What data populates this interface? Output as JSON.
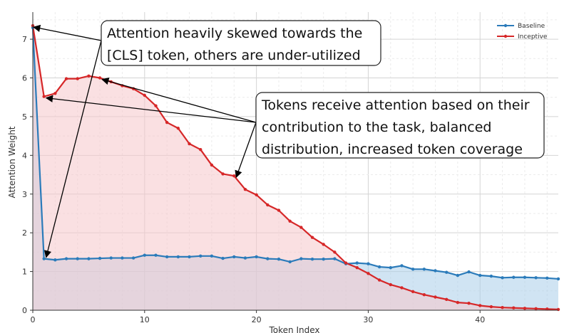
{
  "chart_data": {
    "type": "area",
    "title": "",
    "xlabel": "Token Index",
    "ylabel": "Attention Weight",
    "xlim": [
      0,
      47
    ],
    "ylim": [
      0,
      7.7
    ],
    "xticks": [
      0,
      10,
      20,
      30,
      40
    ],
    "yticks": [
      0,
      1,
      2,
      3,
      4,
      5,
      6,
      7
    ],
    "grid": true,
    "legend_position": "top-right",
    "x": [
      0,
      1,
      2,
      3,
      4,
      5,
      6,
      7,
      8,
      9,
      10,
      11,
      12,
      13,
      14,
      15,
      16,
      17,
      18,
      19,
      20,
      21,
      22,
      23,
      24,
      25,
      26,
      27,
      28,
      29,
      30,
      31,
      32,
      33,
      34,
      35,
      36,
      37,
      38,
      39,
      40,
      41,
      42,
      43,
      44,
      45,
      46,
      47
    ],
    "series": [
      {
        "name": "Baseline",
        "color": "#2b7bba",
        "fill": "#a9cdea",
        "values": [
          7.3,
          1.33,
          1.3,
          1.33,
          1.33,
          1.33,
          1.34,
          1.35,
          1.35,
          1.35,
          1.42,
          1.42,
          1.38,
          1.38,
          1.38,
          1.4,
          1.4,
          1.34,
          1.38,
          1.35,
          1.38,
          1.33,
          1.32,
          1.25,
          1.33,
          1.32,
          1.32,
          1.33,
          1.2,
          1.22,
          1.2,
          1.12,
          1.1,
          1.15,
          1.06,
          1.06,
          1.02,
          0.98,
          0.9,
          0.99,
          0.9,
          0.88,
          0.84,
          0.85,
          0.85,
          0.84,
          0.83,
          0.81
        ]
      },
      {
        "name": "Inceptive",
        "color": "#d62728",
        "fill": "#f6c7cb",
        "values": [
          7.35,
          5.52,
          5.6,
          5.98,
          5.98,
          6.05,
          6.0,
          5.9,
          5.8,
          5.72,
          5.55,
          5.28,
          4.85,
          4.7,
          4.3,
          4.15,
          3.75,
          3.52,
          3.47,
          3.12,
          2.98,
          2.72,
          2.58,
          2.3,
          2.14,
          1.88,
          1.7,
          1.5,
          1.22,
          1.1,
          0.95,
          0.78,
          0.66,
          0.58,
          0.48,
          0.4,
          0.34,
          0.28,
          0.2,
          0.18,
          0.12,
          0.09,
          0.07,
          0.06,
          0.05,
          0.04,
          0.03,
          0.02
        ]
      }
    ],
    "annotations": [
      {
        "text_lines": [
          "Attention heavily skewed towards the",
          "[CLS] token, others are under-utilized"
        ],
        "arrow_targets": [
          [
            0,
            7.35
          ],
          [
            1,
            1.33
          ]
        ]
      },
      {
        "text_lines": [
          "Tokens receive attention based on their",
          "contribution to the task, balanced",
          "distribution, increased token coverage"
        ],
        "arrow_targets": [
          [
            1,
            5.52
          ],
          [
            6,
            6.0
          ],
          [
            18,
            3.47
          ]
        ]
      }
    ]
  }
}
